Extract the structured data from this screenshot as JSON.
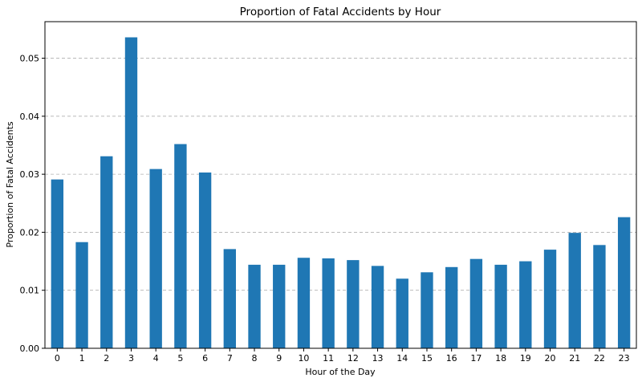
{
  "chart_data": {
    "type": "bar",
    "title": "Proportion of Fatal Accidents by Hour",
    "xlabel": "Hour of the Day",
    "ylabel": "Proportion of Fatal Accidents",
    "categories": [
      "0",
      "1",
      "2",
      "3",
      "4",
      "5",
      "6",
      "7",
      "8",
      "9",
      "10",
      "11",
      "12",
      "13",
      "14",
      "15",
      "16",
      "17",
      "18",
      "19",
      "20",
      "21",
      "22",
      "23"
    ],
    "values": [
      0.0291,
      0.0183,
      0.0331,
      0.0536,
      0.0309,
      0.0352,
      0.0303,
      0.0171,
      0.0144,
      0.0144,
      0.0156,
      0.0155,
      0.0152,
      0.0142,
      0.012,
      0.0131,
      0.014,
      0.0154,
      0.0144,
      0.015,
      0.017,
      0.0199,
      0.0178,
      0.0226
    ],
    "ylim": [
      0,
      0.0563
    ],
    "yticks": [
      "0.00",
      "0.01",
      "0.02",
      "0.03",
      "0.04",
      "0.05"
    ],
    "ytick_values": [
      0,
      0.01,
      0.02,
      0.03,
      0.04,
      0.05
    ],
    "grid": "y-dashed",
    "bar_color": "#1f77b4"
  }
}
